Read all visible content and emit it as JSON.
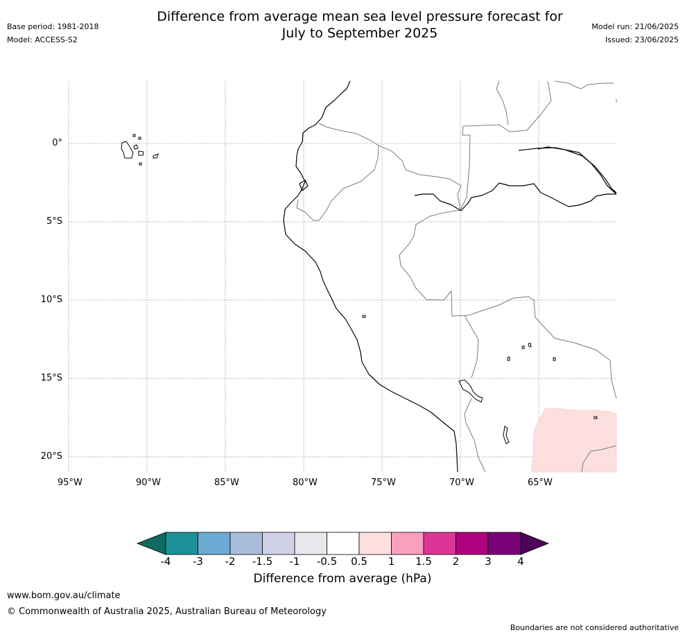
{
  "header": {
    "title_line1": "Difference from average mean sea level pressure forecast for",
    "title_line2": "July to September 2025",
    "base_period": "Base period: 1981-2018",
    "model": "Model: ACCESS-S2",
    "model_run": "Model run: 21/06/2025",
    "issued": "Issued: 23/06/2025"
  },
  "map": {
    "lon_labels": [
      "95°W",
      "90°W",
      "85°W",
      "80°W",
      "75°W",
      "70°W",
      "65°W"
    ],
    "lat_labels": [
      "0°",
      "5°S",
      "10°S",
      "15°S",
      "20°S"
    ]
  },
  "legend": {
    "tick_labels": [
      "-4",
      "-3",
      "-2",
      "-1.5",
      "-1",
      "-0.5",
      "0.5",
      "1",
      "1.5",
      "2",
      "3",
      "4"
    ],
    "colors": [
      "#0e6b5e",
      "#1b9197",
      "#6baad3",
      "#a9bcdc",
      "#d0d1e6",
      "#e8e7ec",
      "#ffffff",
      "#fde0de",
      "#f9a0bc",
      "#dd3597",
      "#ae017e",
      "#7a0177",
      "#4d0158"
    ],
    "label": "Difference from average (hPa)"
  },
  "footer": {
    "url": "www.bom.gov.au/climate",
    "copyright": "© Commonwealth of Australia 2025, Australian Bureau of Meteorology",
    "disclaimer": "Boundaries are not considered authoritative"
  }
}
